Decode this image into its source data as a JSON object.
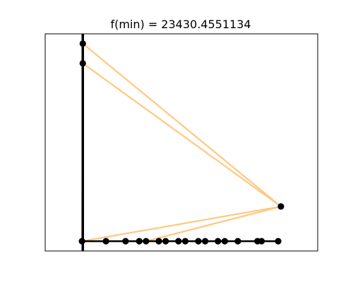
{
  "chart_data": {
    "type": "line",
    "title": "f(min) = 23430.4551134",
    "xlabel": "",
    "ylabel": "",
    "xlim": [
      0,
      100
    ],
    "ylim": [
      0,
      100
    ],
    "grid": false,
    "axis_ticks": false,
    "colors": {
      "route": "#ffc880",
      "track": "#000000",
      "node": "#000000",
      "frame": "#000000",
      "background": "#ffffff"
    },
    "vertical_track": {
      "x": 13.8,
      "y_from": 0,
      "y_to": 100
    },
    "horizontal_track": {
      "y": 4.5,
      "x_from": 13.8,
      "x_to": 85.5
    },
    "nodes": [
      {
        "x": 13.8,
        "y": 95.5
      },
      {
        "x": 13.8,
        "y": 86.4
      },
      {
        "x": 13.5,
        "y": 4.5
      },
      {
        "x": 22.3,
        "y": 4.5
      },
      {
        "x": 29.5,
        "y": 4.5
      },
      {
        "x": 34.5,
        "y": 4.5
      },
      {
        "x": 37.0,
        "y": 4.5
      },
      {
        "x": 41.7,
        "y": 4.5
      },
      {
        "x": 44.2,
        "y": 4.5
      },
      {
        "x": 48.9,
        "y": 4.5
      },
      {
        "x": 51.4,
        "y": 4.5
      },
      {
        "x": 56.2,
        "y": 4.5
      },
      {
        "x": 58.7,
        "y": 4.5
      },
      {
        "x": 63.4,
        "y": 4.5
      },
      {
        "x": 65.9,
        "y": 4.5
      },
      {
        "x": 70.7,
        "y": 4.5
      },
      {
        "x": 77.9,
        "y": 4.5
      },
      {
        "x": 79.4,
        "y": 4.5
      },
      {
        "x": 85.5,
        "y": 4.5
      },
      {
        "x": 86.5,
        "y": 20.5
      }
    ],
    "routes": [
      [
        [
          13.8,
          95.5
        ],
        [
          86.5,
          20.5
        ],
        [
          13.5,
          4.5
        ]
      ],
      [
        [
          13.8,
          86.4
        ],
        [
          86.5,
          20.5
        ],
        [
          37.0,
          4.5
        ]
      ],
      [
        [
          13.8,
          86.4
        ],
        [
          13.5,
          4.5
        ],
        [
          85.5,
          4.5
        ]
      ]
    ]
  }
}
